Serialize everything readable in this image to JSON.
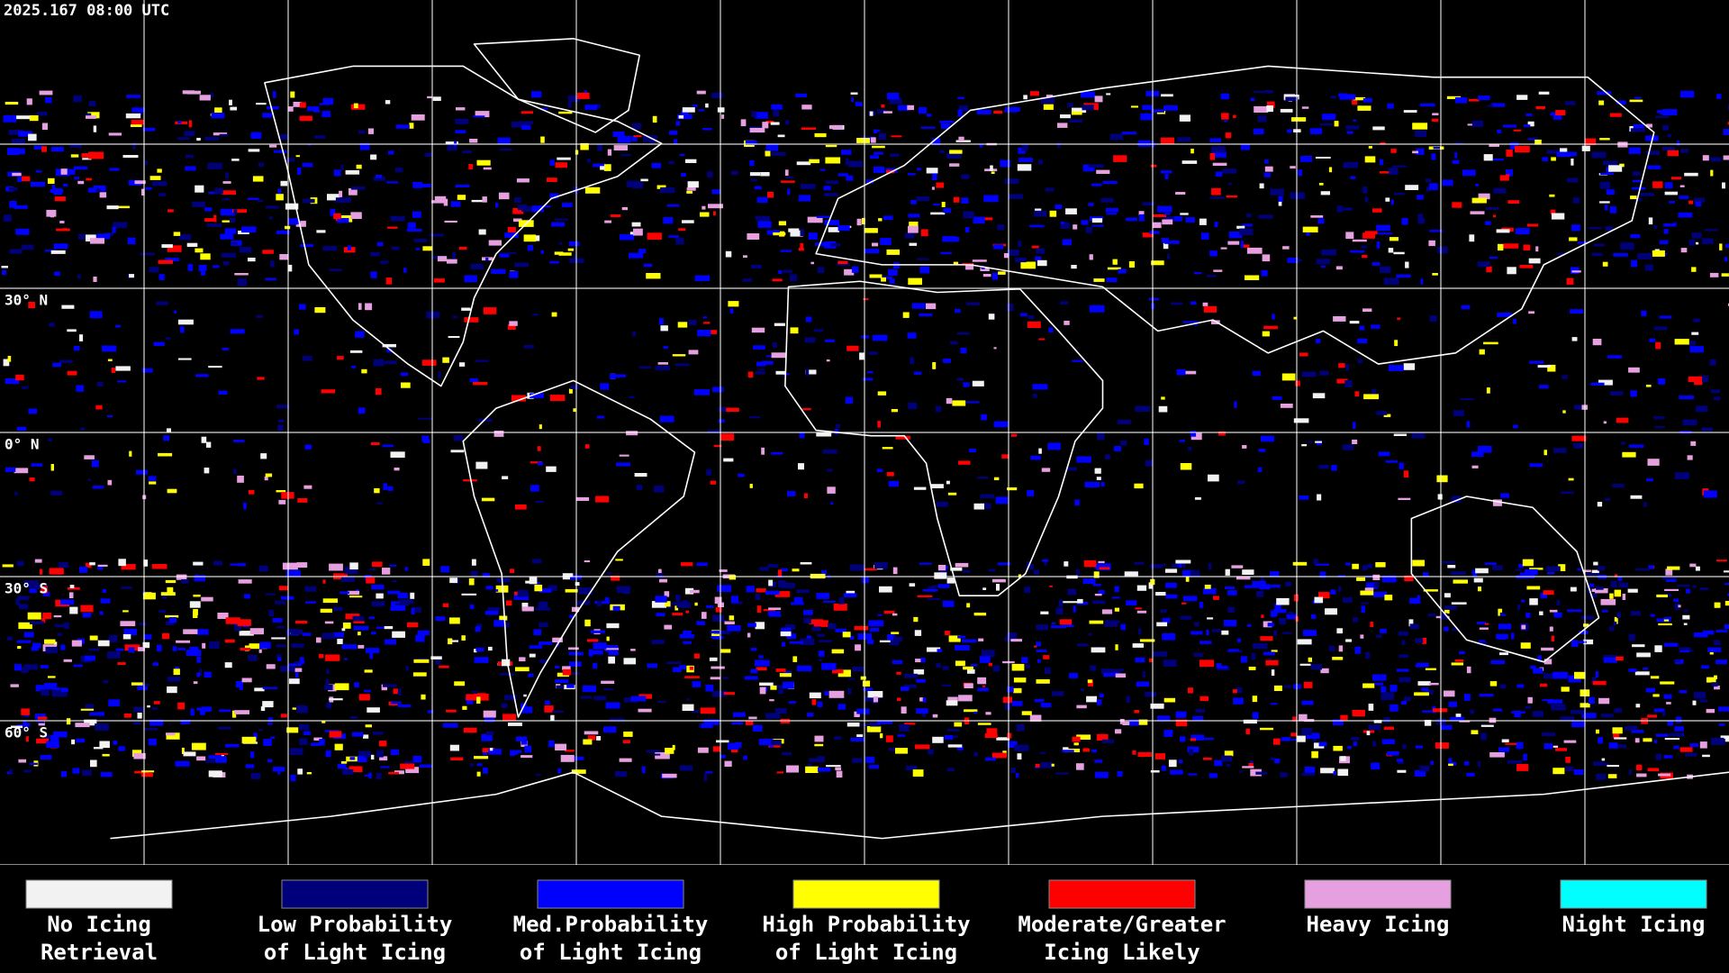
{
  "header": {
    "timestamp": "2025.167 08:00 UTC"
  },
  "map": {
    "latitude_labels": [
      "30° N",
      "0° N",
      "30° S",
      "60° S"
    ]
  },
  "legend": {
    "items": [
      {
        "label_lines": [
          "No Icing",
          "Retrieval"
        ],
        "color": "#f2f2f2"
      },
      {
        "label_lines": [
          "Low Probability",
          "of Light Icing"
        ],
        "color": "#00007a"
      },
      {
        "label_lines": [
          "Med.Probability",
          "of Light Icing"
        ],
        "color": "#0000ff"
      },
      {
        "label_lines": [
          "High Probability",
          "of Light Icing"
        ],
        "color": "#ffff00"
      },
      {
        "label_lines": [
          "Moderate/Greater",
          "Icing Likely"
        ],
        "color": "#ff0000"
      },
      {
        "label_lines": [
          "Heavy Icing"
        ],
        "color": "#e6a0e0"
      },
      {
        "label_lines": [
          "Night Icing"
        ],
        "color": "#00ffff"
      }
    ]
  }
}
